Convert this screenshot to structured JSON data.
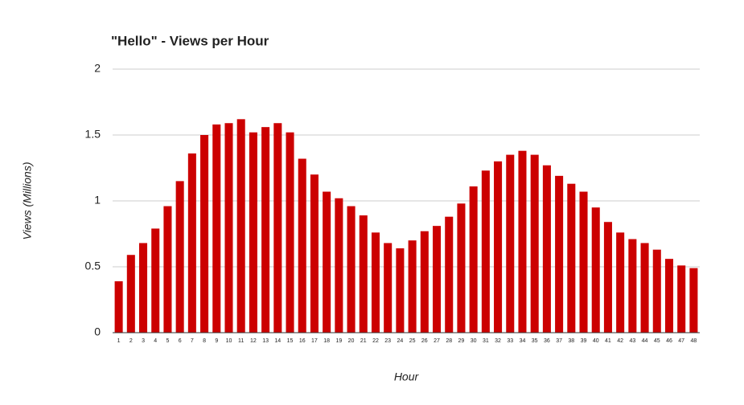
{
  "chart_data": {
    "type": "bar",
    "title": "\"Hello\" - Views per Hour",
    "x_label": "Hour",
    "y_label": "Views (Millions)",
    "categories": [
      "1",
      "2",
      "3",
      "4",
      "5",
      "6",
      "7",
      "8",
      "9",
      "10",
      "11",
      "12",
      "13",
      "14",
      "15",
      "16",
      "17",
      "18",
      "19",
      "20",
      "21",
      "22",
      "23",
      "24",
      "25",
      "26",
      "27",
      "28",
      "29",
      "30",
      "31",
      "32",
      "33",
      "34",
      "35",
      "36",
      "37",
      "38",
      "39",
      "40",
      "41",
      "42",
      "43",
      "44",
      "45",
      "46",
      "47",
      "48"
    ],
    "values": [
      0.39,
      0.59,
      0.68,
      0.79,
      0.96,
      1.15,
      1.36,
      1.5,
      1.58,
      1.59,
      1.62,
      1.52,
      1.56,
      1.59,
      1.52,
      1.32,
      1.2,
      1.07,
      1.02,
      0.96,
      0.89,
      0.76,
      0.68,
      0.64,
      0.7,
      0.77,
      0.81,
      0.88,
      0.98,
      1.11,
      1.23,
      1.3,
      1.35,
      1.38,
      1.35,
      1.27,
      1.19,
      1.13,
      1.07,
      0.95,
      0.84,
      0.76,
      0.71,
      0.68,
      0.63,
      0.56,
      0.51,
      0.49
    ],
    "color": "#cc0000",
    "ylim": [
      0,
      2
    ],
    "yticks": [
      0,
      0.5,
      1,
      1.5,
      2
    ],
    "grid": true
  }
}
